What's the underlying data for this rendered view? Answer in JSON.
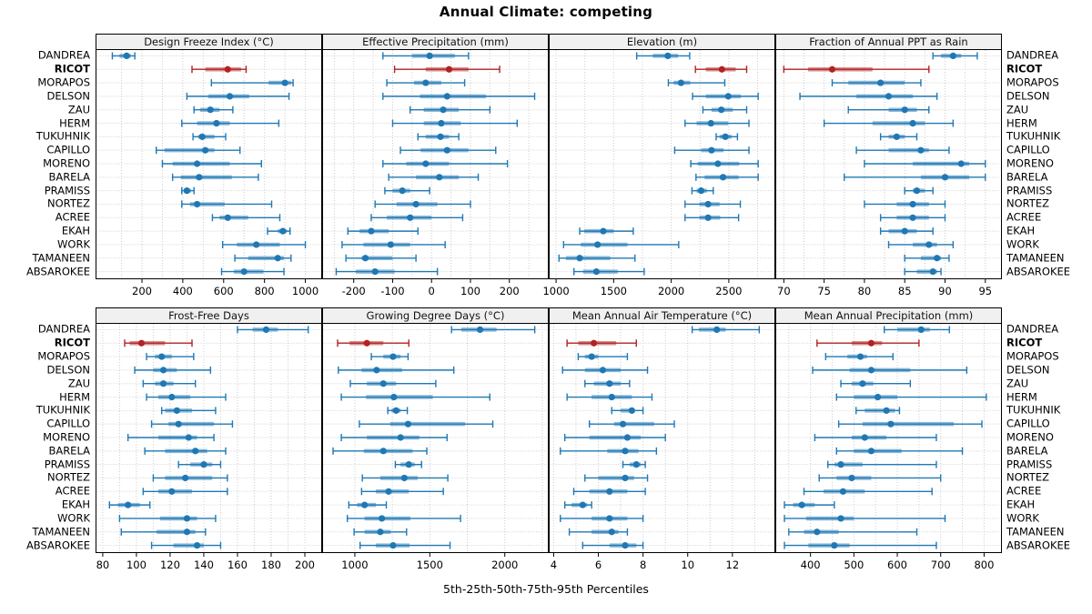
{
  "title": "Annual Climate: competing",
  "caption": "5th-25th-50th-75th-95th Percentiles",
  "highlight_site": "RICOT",
  "colors": {
    "series": "#1f78b4",
    "highlight": "#b22222",
    "grid": "#cccccc",
    "strip_bg": "#f0f0f0",
    "border": "#000000"
  },
  "sites": [
    "DANDREA",
    "RICOT",
    "MORAPOS",
    "DELSON",
    "ZAU",
    "HERM",
    "TUKUHNIK",
    "CAPILLO",
    "MORENO",
    "BARELA",
    "PRAMISS",
    "NORTEZ",
    "ACREE",
    "EKAH",
    "WORK",
    "TAMANEEN",
    "ABSAROKEE"
  ],
  "chart_data": {
    "type": "dotplot-percentile-ranges",
    "percentiles": [
      5,
      25,
      50,
      75,
      95
    ],
    "rows": [
      "DANDREA",
      "RICOT",
      "MORAPOS",
      "DELSON",
      "ZAU",
      "HERM",
      "TUKUHNIK",
      "CAPILLO",
      "MORENO",
      "BARELA",
      "PRAMISS",
      "NORTEZ",
      "ACREE",
      "EKAH",
      "WORK",
      "TAMANEEN",
      "ABSAROKEE"
    ],
    "legend": "none",
    "grid": "dotted",
    "panels": [
      {
        "title": "Design Freeze Index (°C)",
        "xlim": [
          -25,
          1080
        ],
        "ticks": [
          200,
          400,
          600,
          800,
          1000
        ],
        "gridlines": {
          "start": 100,
          "step": 100,
          "end": 1000
        },
        "values": [
          [
            55,
            90,
            125,
            145,
            165
          ],
          [
            445,
            510,
            620,
            685,
            710
          ],
          [
            540,
            820,
            900,
            930,
            940
          ],
          [
            420,
            525,
            630,
            725,
            920
          ],
          [
            455,
            485,
            535,
            580,
            645
          ],
          [
            395,
            470,
            565,
            630,
            870
          ],
          [
            450,
            475,
            495,
            555,
            610
          ],
          [
            270,
            310,
            510,
            555,
            680
          ],
          [
            300,
            350,
            470,
            630,
            785
          ],
          [
            350,
            390,
            480,
            640,
            770
          ],
          [
            395,
            405,
            420,
            440,
            455
          ],
          [
            395,
            435,
            470,
            605,
            835
          ],
          [
            545,
            580,
            620,
            720,
            875
          ],
          [
            815,
            865,
            890,
            910,
            925
          ],
          [
            595,
            665,
            760,
            875,
            1000
          ],
          [
            655,
            720,
            865,
            895,
            930
          ],
          [
            590,
            650,
            700,
            795,
            895
          ]
        ]
      },
      {
        "title": "Effective Precipitation (mm)",
        "xlim": [
          -280,
          300
        ],
        "ticks": [
          -200,
          -100,
          0,
          100,
          200
        ],
        "gridlines": {
          "start": -250,
          "step": 50,
          "end": 250
        },
        "values": [
          [
            -125,
            -50,
            -5,
            60,
            95
          ],
          [
            -95,
            -15,
            45,
            95,
            175
          ],
          [
            -115,
            -45,
            -15,
            25,
            85
          ],
          [
            -125,
            -30,
            40,
            140,
            265
          ],
          [
            -55,
            -20,
            30,
            70,
            150
          ],
          [
            -100,
            -20,
            25,
            75,
            220
          ],
          [
            -35,
            -15,
            23,
            45,
            70
          ],
          [
            -80,
            -28,
            40,
            95,
            165
          ],
          [
            -125,
            -65,
            -15,
            45,
            195
          ],
          [
            -110,
            -40,
            20,
            70,
            120
          ],
          [
            -120,
            -100,
            -75,
            -55,
            -5
          ],
          [
            -145,
            -90,
            -40,
            15,
            100
          ],
          [
            -155,
            -115,
            -55,
            0,
            80
          ],
          [
            -215,
            -185,
            -155,
            -110,
            -35
          ],
          [
            -230,
            -175,
            -105,
            -55,
            35
          ],
          [
            -220,
            -180,
            -170,
            -100,
            -40
          ],
          [
            -245,
            -195,
            -145,
            -95,
            15
          ]
        ]
      },
      {
        "title": "Elevation (m)",
        "xlim": [
          940,
          2900
        ],
        "ticks": [
          1000,
          1500,
          2000,
          2500
        ],
        "gridlines": {
          "start": 1000,
          "step": 250,
          "end": 2750
        },
        "values": [
          [
            1700,
            1840,
            1970,
            2060,
            2160
          ],
          [
            2210,
            2300,
            2440,
            2560,
            2655
          ],
          [
            1975,
            2020,
            2085,
            2165,
            2465
          ],
          [
            2185,
            2300,
            2495,
            2605,
            2755
          ],
          [
            2275,
            2350,
            2435,
            2535,
            2655
          ],
          [
            2120,
            2220,
            2345,
            2495,
            2675
          ],
          [
            2390,
            2420,
            2470,
            2525,
            2575
          ],
          [
            2030,
            2260,
            2350,
            2455,
            2675
          ],
          [
            2170,
            2230,
            2405,
            2590,
            2755
          ],
          [
            2215,
            2290,
            2450,
            2585,
            2755
          ],
          [
            2180,
            2220,
            2260,
            2310,
            2365
          ],
          [
            2120,
            2245,
            2320,
            2420,
            2600
          ],
          [
            2120,
            2245,
            2320,
            2425,
            2585
          ],
          [
            1205,
            1245,
            1410,
            1500,
            1670
          ],
          [
            1065,
            1215,
            1360,
            1620,
            2065
          ],
          [
            1025,
            1085,
            1205,
            1470,
            1685
          ],
          [
            1155,
            1235,
            1350,
            1535,
            1765
          ]
        ]
      },
      {
        "title": "Fraction of Annual PPT as Rain",
        "xlim": [
          69,
          97
        ],
        "ticks": [
          70,
          75,
          80,
          85,
          90,
          95
        ],
        "gridlines": {
          "start": 70,
          "step": 2.5,
          "end": 95
        },
        "values": [
          [
            88.5,
            89.5,
            91,
            92,
            94
          ],
          [
            70,
            73,
            76,
            81,
            88
          ],
          [
            76,
            78,
            82,
            85,
            87
          ],
          [
            72,
            79,
            83,
            86,
            89
          ],
          [
            78,
            83,
            85,
            86.5,
            88
          ],
          [
            75,
            81,
            86,
            87.5,
            91
          ],
          [
            82,
            83,
            84,
            85,
            86.5
          ],
          [
            79,
            83,
            87,
            88,
            90.5
          ],
          [
            80,
            86,
            92,
            93,
            95
          ],
          [
            77.5,
            87,
            90,
            93,
            95
          ],
          [
            85,
            86,
            86.5,
            87.5,
            88.5
          ],
          [
            80,
            84,
            86,
            88,
            90
          ],
          [
            82,
            84,
            86,
            88,
            90
          ],
          [
            82,
            83,
            85,
            86.5,
            88.5
          ],
          [
            83,
            86,
            88,
            89,
            91
          ],
          [
            85,
            87,
            89,
            89.5,
            90.5
          ],
          [
            85,
            86.5,
            88.5,
            89,
            89.5
          ]
        ]
      },
      {
        "title": "Frost-Free Days",
        "xlim": [
          76,
          210
        ],
        "ticks": [
          80,
          100,
          120,
          140,
          160,
          180,
          200
        ],
        "gridlines": {
          "start": 80,
          "step": 10,
          "end": 200
        },
        "values": [
          [
            160,
            169,
            177,
            184,
            202
          ],
          [
            93,
            96,
            103,
            117,
            133
          ],
          [
            106,
            111,
            115,
            121,
            134
          ],
          [
            99,
            110,
            116,
            124,
            144
          ],
          [
            104,
            111,
            116,
            122,
            135
          ],
          [
            106,
            113,
            121,
            132,
            153
          ],
          [
            115,
            117,
            124,
            133,
            147
          ],
          [
            109,
            119,
            125,
            146,
            157
          ],
          [
            95,
            113,
            131,
            136,
            146
          ],
          [
            105,
            117,
            135,
            142,
            153
          ],
          [
            125,
            132,
            140,
            145,
            150
          ],
          [
            110,
            117,
            129,
            145,
            154
          ],
          [
            104,
            113,
            121,
            133,
            154
          ],
          [
            84,
            89,
            95,
            102,
            108
          ],
          [
            90,
            114,
            130,
            136,
            147
          ],
          [
            91,
            112,
            130,
            135,
            141
          ],
          [
            109,
            122,
            136,
            140,
            150
          ]
        ]
      },
      {
        "title": "Growing Degree Days (°C)",
        "xlim": [
          785,
          2290
        ],
        "ticks": [
          1000,
          1500,
          2000
        ],
        "gridlines": {
          "start": 1000,
          "step": 250,
          "end": 2250
        },
        "values": [
          [
            1645,
            1710,
            1835,
            1945,
            2200
          ],
          [
            885,
            965,
            1080,
            1190,
            1360
          ],
          [
            1110,
            1190,
            1255,
            1305,
            1355
          ],
          [
            890,
            1045,
            1145,
            1315,
            1660
          ],
          [
            970,
            1080,
            1190,
            1275,
            1540
          ],
          [
            910,
            1075,
            1260,
            1520,
            1900
          ],
          [
            1220,
            1245,
            1275,
            1305,
            1350
          ],
          [
            1030,
            1235,
            1355,
            1735,
            1920
          ],
          [
            910,
            1080,
            1305,
            1430,
            1615
          ],
          [
            855,
            1060,
            1190,
            1385,
            1480
          ],
          [
            1270,
            1305,
            1360,
            1400,
            1445
          ],
          [
            1050,
            1170,
            1330,
            1420,
            1620
          ],
          [
            1045,
            1140,
            1225,
            1360,
            1590
          ],
          [
            960,
            1015,
            1065,
            1140,
            1210
          ],
          [
            950,
            1065,
            1180,
            1370,
            1705
          ],
          [
            995,
            1065,
            1170,
            1240,
            1345
          ],
          [
            1035,
            1140,
            1255,
            1365,
            1635
          ]
        ]
      },
      {
        "title": "Mean Annual Air Temperature (°C)",
        "xlim": [
          3.8,
          13.9
        ],
        "ticks": [
          4,
          6,
          8,
          10,
          12
        ],
        "gridlines": {
          "start": 4,
          "step": 1,
          "end": 13
        },
        "values": [
          [
            10.2,
            10.5,
            11.3,
            11.7,
            13.2
          ],
          [
            4.6,
            5.1,
            5.8,
            6.8,
            7.7
          ],
          [
            5.1,
            5.4,
            5.7,
            6.0,
            7.3
          ],
          [
            4.4,
            5.4,
            6.2,
            7.0,
            8.2
          ],
          [
            5.4,
            5.8,
            6.5,
            7.0,
            7.4
          ],
          [
            4.6,
            5.7,
            6.6,
            7.5,
            8.4
          ],
          [
            6.6,
            7.0,
            7.5,
            7.6,
            8.0
          ],
          [
            5.6,
            6.7,
            7.1,
            8.5,
            9.4
          ],
          [
            4.5,
            5.6,
            7.3,
            7.9,
            9.0
          ],
          [
            4.3,
            6.4,
            7.2,
            7.8,
            8.6
          ],
          [
            7.1,
            7.4,
            7.7,
            7.9,
            8.1
          ],
          [
            5.4,
            6.0,
            7.2,
            7.6,
            8.2
          ],
          [
            4.9,
            5.6,
            6.5,
            7.3,
            8.1
          ],
          [
            4.5,
            4.8,
            5.3,
            5.5,
            5.7
          ],
          [
            4.3,
            5.7,
            6.5,
            7.3,
            8.0
          ],
          [
            4.7,
            5.7,
            6.6,
            6.9,
            7.3
          ],
          [
            5.3,
            6.5,
            7.2,
            7.7,
            8.0
          ]
        ]
      },
      {
        "title": "Mean Annual Precipitation (mm)",
        "xlim": [
          320,
          840
        ],
        "ticks": [
          400,
          500,
          600,
          700,
          800
        ],
        "gridlines": {
          "start": 350,
          "step": 50,
          "end": 800
        },
        "values": [
          [
            570,
            600,
            655,
            675,
            720
          ],
          [
            415,
            495,
            540,
            565,
            650
          ],
          [
            435,
            485,
            515,
            530,
            590
          ],
          [
            405,
            490,
            540,
            630,
            760
          ],
          [
            470,
            495,
            520,
            545,
            630
          ],
          [
            460,
            500,
            555,
            600,
            805
          ],
          [
            505,
            525,
            575,
            595,
            605
          ],
          [
            465,
            520,
            585,
            730,
            795
          ],
          [
            410,
            495,
            525,
            575,
            690
          ],
          [
            460,
            500,
            540,
            610,
            750
          ],
          [
            440,
            455,
            470,
            520,
            690
          ],
          [
            420,
            460,
            495,
            540,
            700
          ],
          [
            385,
            430,
            475,
            525,
            680
          ],
          [
            340,
            360,
            380,
            410,
            455
          ],
          [
            340,
            390,
            470,
            500,
            710
          ],
          [
            350,
            385,
            415,
            465,
            645
          ],
          [
            340,
            395,
            455,
            490,
            690
          ]
        ]
      }
    ]
  }
}
